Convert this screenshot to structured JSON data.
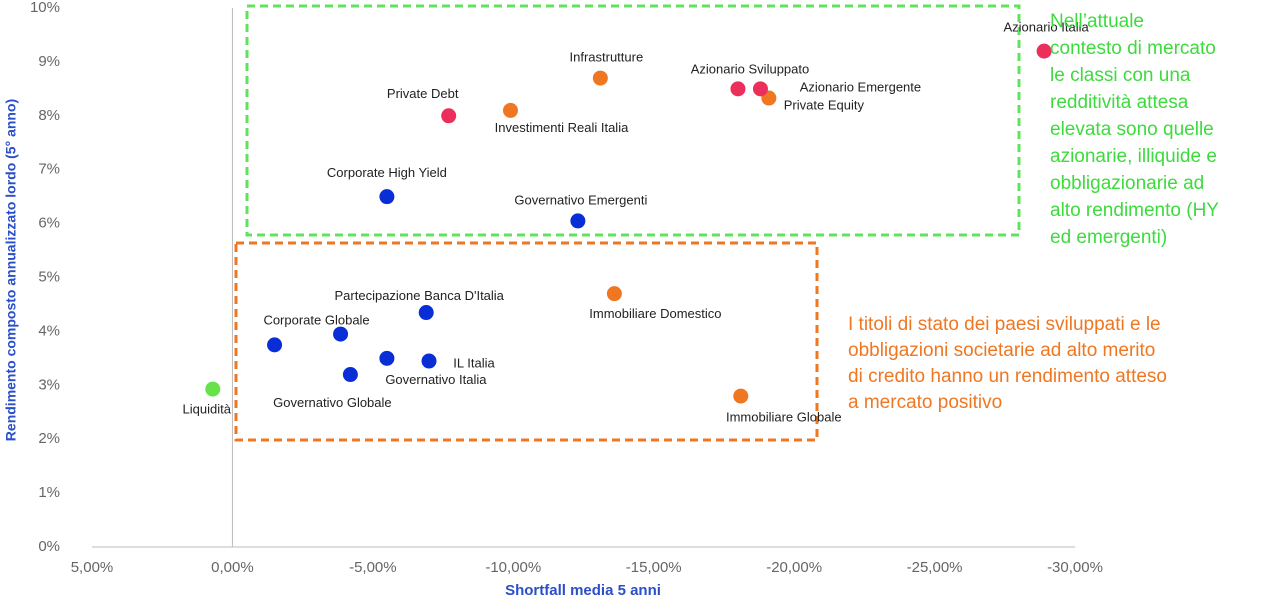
{
  "chart_data": {
    "type": "scatter",
    "x_label": "Shortfall media 5 anni",
    "y_label": "Rendimento composto annualizzato lordo (5° anno)",
    "xlim": [
      5,
      -30
    ],
    "ylim": [
      0,
      10
    ],
    "xticks": [
      {
        "value": 5,
        "label": "5,00%"
      },
      {
        "value": 0,
        "label": "0,00%"
      },
      {
        "value": -5,
        "label": "-5,00%"
      },
      {
        "value": -10,
        "label": "-10,00%"
      },
      {
        "value": -15,
        "label": "-15,00%"
      },
      {
        "value": -20,
        "label": "-20,00%"
      },
      {
        "value": -25,
        "label": "-25,00%"
      },
      {
        "value": -30,
        "label": "-30,00%"
      }
    ],
    "yticks": [
      {
        "value": 0,
        "label": "0%"
      },
      {
        "value": 1,
        "label": "1%"
      },
      {
        "value": 2,
        "label": "2%"
      },
      {
        "value": 3,
        "label": "3%"
      },
      {
        "value": 4,
        "label": "4%"
      },
      {
        "value": 5,
        "label": "5%"
      },
      {
        "value": 6,
        "label": "6%"
      },
      {
        "value": 7,
        "label": "7%"
      },
      {
        "value": 8,
        "label": "8%"
      },
      {
        "value": 9,
        "label": "9%"
      },
      {
        "value": 10,
        "label": "10%"
      }
    ],
    "series": [
      {
        "color": "#66e34a",
        "x": [
          0.7
        ],
        "values": [
          2.93
        ],
        "labels": [
          "Liquidità"
        ]
      },
      {
        "color": "#0a2ed6",
        "x": [
          -1.5,
          -3.85,
          -4.2,
          -5.5,
          -7.0,
          -6.9,
          -5.5,
          -12.3
        ],
        "values": [
          3.75,
          3.95,
          3.2,
          3.5,
          3.45,
          4.35,
          6.5,
          6.05
        ],
        "labels": [
          null,
          "Corporate Globale",
          "Governativo Globale",
          "Governativo Italia",
          "IL Italia",
          "Partecipazione Banca D'Italia",
          "Corporate High Yield",
          "Governativo Emergenti"
        ]
      },
      {
        "color": "#f07722",
        "x": [
          -13.6,
          -18.1,
          -9.9,
          -13.1,
          -19.1
        ],
        "values": [
          4.7,
          2.8,
          8.1,
          8.7,
          8.33
        ],
        "labels": [
          "Immobiliare Domestico",
          "Immobiliare Globale",
          "Investimenti Reali Italia",
          "Infrastrutture",
          "Private Equity"
        ]
      },
      {
        "color": "#ec2f5a",
        "x": [
          -7.7,
          -18.0,
          -18.8,
          -28.9
        ],
        "values": [
          8.0,
          8.5,
          8.5,
          9.2
        ],
        "labels": [
          "Private Debt",
          "Azionario Sviluppato",
          "Azionario Emergente",
          "Azionario Italia"
        ]
      }
    ],
    "annotations": [
      {
        "color": "#3ddb3d",
        "lines": [
          "Nell’attuale",
          "contesto di mercato",
          "le classi con una",
          "redditività attesa",
          "elevata sono quelle",
          "azionarie, illiquide e",
          "obbligazionarie ad",
          "alto rendimento (HY",
          "ed emergenti)"
        ]
      },
      {
        "color": "#f07722",
        "lines": [
          "I titoli di stato dei paesi sviluppati e le",
          "obbligazioni societarie ad alto merito",
          "di credito hanno un rendimento atteso",
          "a mercato positivo"
        ]
      }
    ]
  }
}
